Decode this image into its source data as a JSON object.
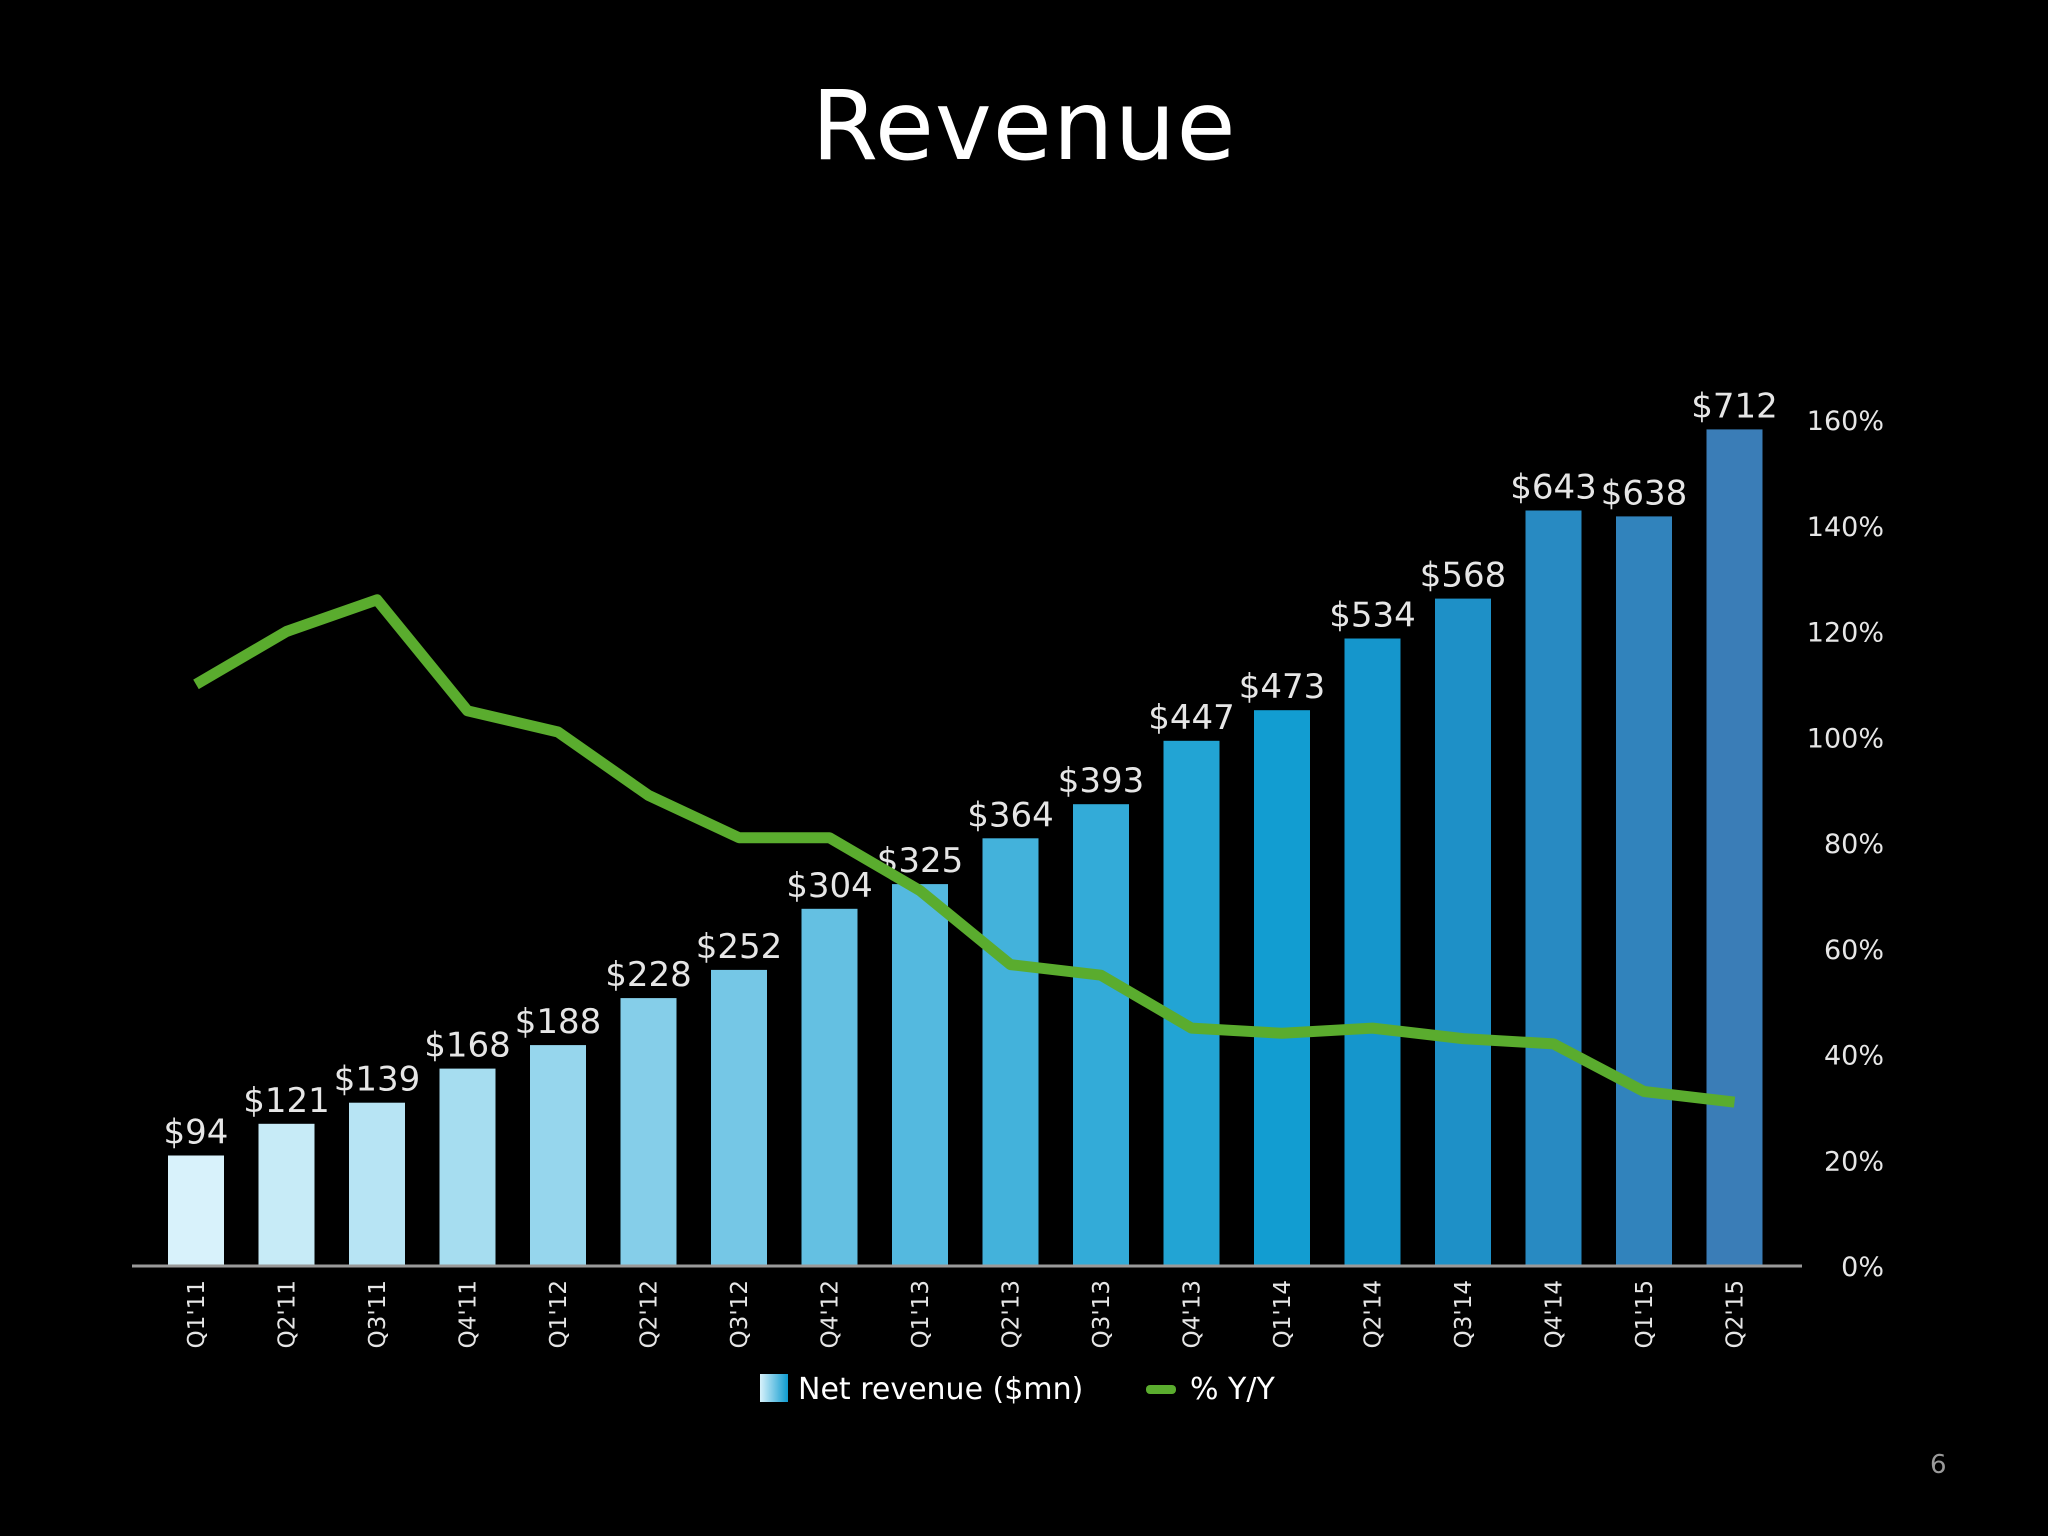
{
  "slide": {
    "title": "Revenue",
    "page_number": "6"
  },
  "colors": {
    "background": "#000000",
    "line": "#5aac2e",
    "axis": "#9a9a9a",
    "bar_gradient_start": "#d8f2fb",
    "bar_gradient_mid": "#0e9bd0",
    "bar_gradient_end": "#3a7db7"
  },
  "chart_data": {
    "type": "bar",
    "categories": [
      "Q1'11",
      "Q2'11",
      "Q3'11",
      "Q4'11",
      "Q1'12",
      "Q2'12",
      "Q3'12",
      "Q4'12",
      "Q1'13",
      "Q2'13",
      "Q3'13",
      "Q4'13",
      "Q1'14",
      "Q2'14",
      "Q3'14",
      "Q4'14",
      "Q1'15",
      "Q2'15"
    ],
    "series": [
      {
        "name": "Net revenue ($mn)",
        "type": "bar",
        "values": [
          94,
          121,
          139,
          168,
          188,
          228,
          252,
          304,
          325,
          364,
          393,
          447,
          473,
          534,
          568,
          643,
          638,
          712
        ],
        "labels": [
          "$94",
          "$121",
          "$139",
          "$168",
          "$188",
          "$228",
          "$252",
          "$304",
          "$325",
          "$364",
          "$393",
          "$447",
          "$473",
          "$534",
          "$568",
          "$643",
          "$638",
          "$712"
        ]
      },
      {
        "name": "% Y/Y",
        "type": "line",
        "axis": "right",
        "values": [
          110,
          120,
          126,
          105,
          101,
          89,
          81,
          81,
          71,
          57,
          55,
          45,
          44,
          45,
          43,
          42,
          33,
          31
        ]
      }
    ],
    "y_left_range": [
      0,
      720
    ],
    "y_right_range": [
      0,
      160
    ],
    "y_right_ticks": [
      "0%",
      "20%",
      "40%",
      "60%",
      "80%",
      "100%",
      "120%",
      "140%",
      "160%"
    ],
    "legend_position": "bottom",
    "grid": false
  }
}
